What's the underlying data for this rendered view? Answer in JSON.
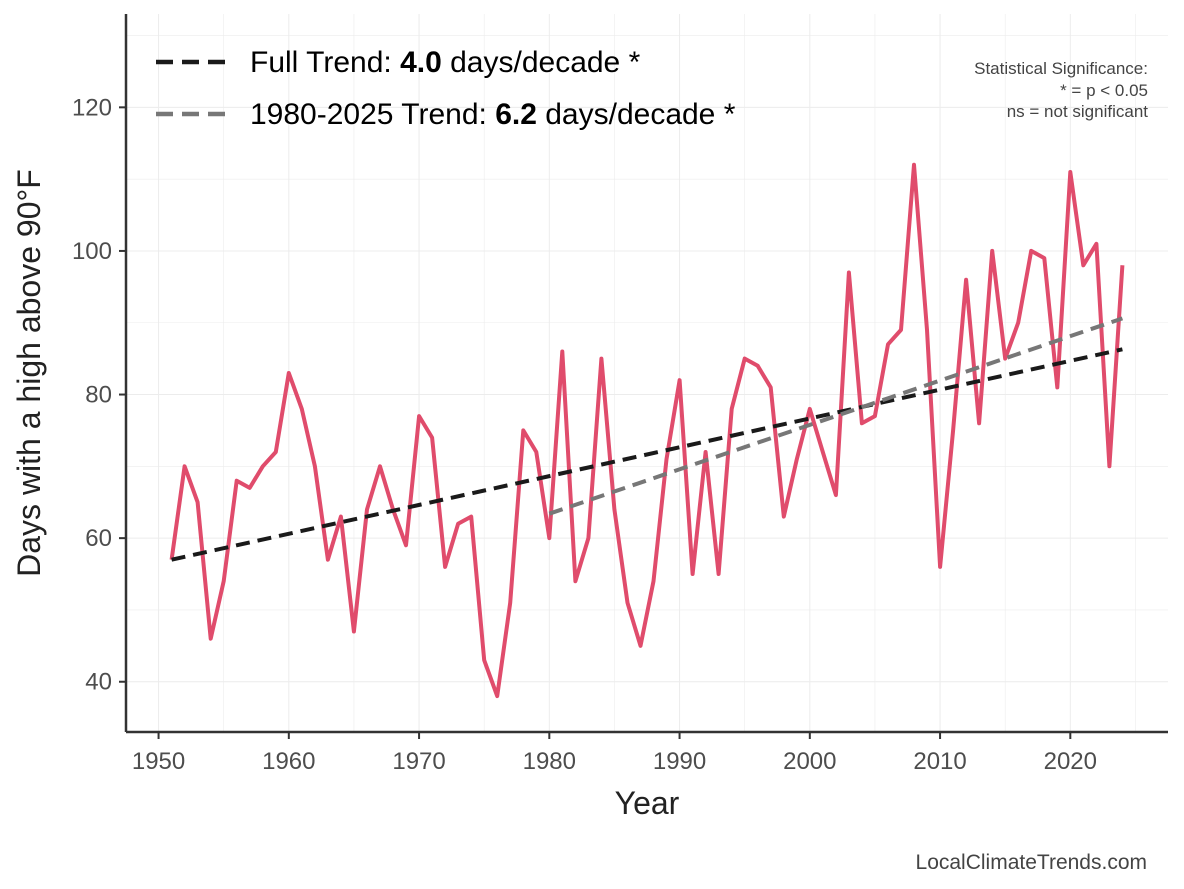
{
  "chart_data": {
    "type": "line",
    "xlabel": "Year",
    "ylabel": "Days with a high above 90°F",
    "xlim": [
      1947.5,
      2027.5
    ],
    "ylim": [
      33,
      133
    ],
    "xticks": [
      1950,
      1960,
      1970,
      1980,
      1990,
      2000,
      2010,
      2020
    ],
    "yticks": [
      40,
      60,
      80,
      100,
      120
    ],
    "grid": true,
    "legend_position": "top-left",
    "series": [
      {
        "color": "#e04c6c",
        "x": [
          1951,
          1952,
          1953,
          1954,
          1955,
          1956,
          1957,
          1958,
          1959,
          1960,
          1961,
          1962,
          1963,
          1964,
          1965,
          1966,
          1967,
          1968,
          1969,
          1970,
          1971,
          1972,
          1973,
          1974,
          1975,
          1976,
          1977,
          1978,
          1979,
          1980,
          1981,
          1982,
          1983,
          1984,
          1985,
          1986,
          1987,
          1988,
          1989,
          1990,
          1991,
          1992,
          1993,
          1994,
          1995,
          1996,
          1997,
          1998,
          1999,
          2000,
          2001,
          2002,
          2003,
          2004,
          2005,
          2006,
          2007,
          2008,
          2009,
          2010,
          2011,
          2012,
          2013,
          2014,
          2015,
          2016,
          2017,
          2018,
          2019,
          2020,
          2021,
          2022,
          2023,
          2024
        ],
        "values": [
          57,
          70,
          65,
          46,
          54,
          68,
          67,
          70,
          72,
          83,
          78,
          70,
          57,
          63,
          47,
          64,
          70,
          64,
          59,
          77,
          74,
          56,
          62,
          63,
          43,
          38,
          51,
          75,
          72,
          60,
          86,
          54,
          60,
          85,
          64,
          51,
          45,
          54,
          71,
          82,
          55,
          72,
          55,
          78,
          85,
          84,
          81,
          63,
          71,
          78,
          72,
          66,
          97,
          76,
          77,
          87,
          89,
          112,
          89,
          56,
          75,
          96,
          76,
          100,
          85,
          90,
          100,
          99,
          81,
          111,
          98,
          101,
          70,
          98
        ]
      },
      {
        "name": "Full Trend",
        "color": "#1a1a1a",
        "style": "dashed",
        "x": [
          1951,
          2024
        ],
        "values": [
          57.0,
          86.3
        ]
      },
      {
        "name": "1980-2025 Trend",
        "color": "#777777",
        "style": "dashed",
        "x": [
          1980,
          2024
        ],
        "values": [
          63.4,
          90.6
        ]
      }
    ],
    "legend": [
      {
        "prefix": "Full Trend: ",
        "value": "4.0",
        "suffix": " days/decade *",
        "color": "#1a1a1a"
      },
      {
        "prefix": "1980-2025 Trend: ",
        "value": "6.2",
        "suffix": " days/decade *",
        "color": "#777777"
      }
    ],
    "annotations": {
      "significance": [
        "Statistical Significance:",
        "* = p < 0.05",
        "ns = not significant"
      ],
      "credit": "LocalClimateTrends.com"
    }
  }
}
